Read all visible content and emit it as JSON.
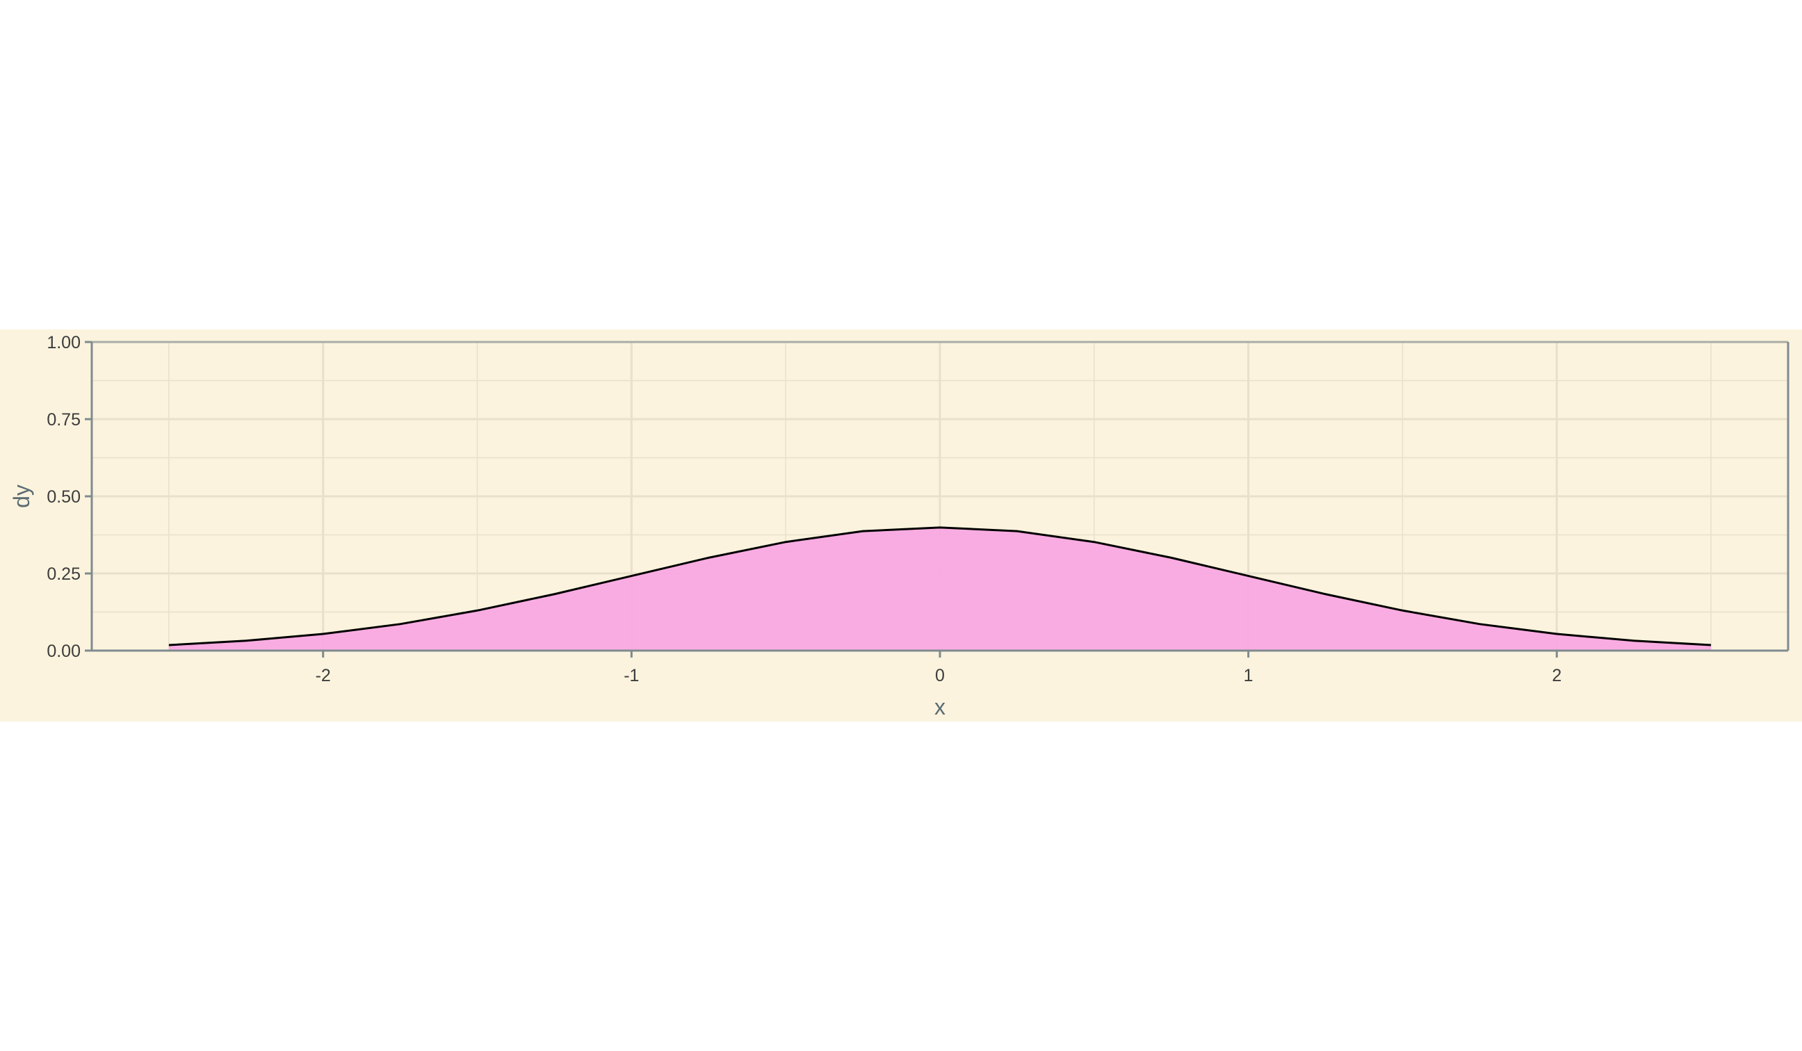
{
  "chart_data": {
    "type": "area",
    "xlabel": "x",
    "ylabel": "dy",
    "xlim": [
      -2.75,
      2.75
    ],
    "ylim": [
      0,
      1
    ],
    "x_ticks": [
      -2,
      -1,
      0,
      1,
      2
    ],
    "x_tick_labels": [
      "-2",
      "-1",
      "0",
      "1",
      "2"
    ],
    "y_ticks": [
      0,
      0.25,
      0.5,
      0.75,
      1
    ],
    "y_tick_labels": [
      "0.00",
      "0.25",
      "0.50",
      "0.75",
      "1.00"
    ],
    "grid": true,
    "series": [
      {
        "x": [
          -2.5,
          -2.25,
          -2.0,
          -1.75,
          -1.5,
          -1.25,
          -1.0,
          -0.75,
          -0.5,
          -0.25,
          0.0,
          0.25,
          0.5,
          0.75,
          1.0,
          1.25,
          1.5,
          1.75,
          2.0,
          2.25,
          2.5
        ],
        "y": [
          0.018,
          0.032,
          0.054,
          0.086,
          0.13,
          0.183,
          0.242,
          0.301,
          0.352,
          0.387,
          0.399,
          0.387,
          0.352,
          0.301,
          0.242,
          0.183,
          0.13,
          0.086,
          0.054,
          0.032,
          0.018
        ]
      }
    ],
    "colors": {
      "panel_background": "#fbf3dd",
      "area_fill": "#f9a8e2",
      "line": "#000000",
      "grid": "#e8e0cc",
      "axis": "#7f8b8f"
    }
  }
}
